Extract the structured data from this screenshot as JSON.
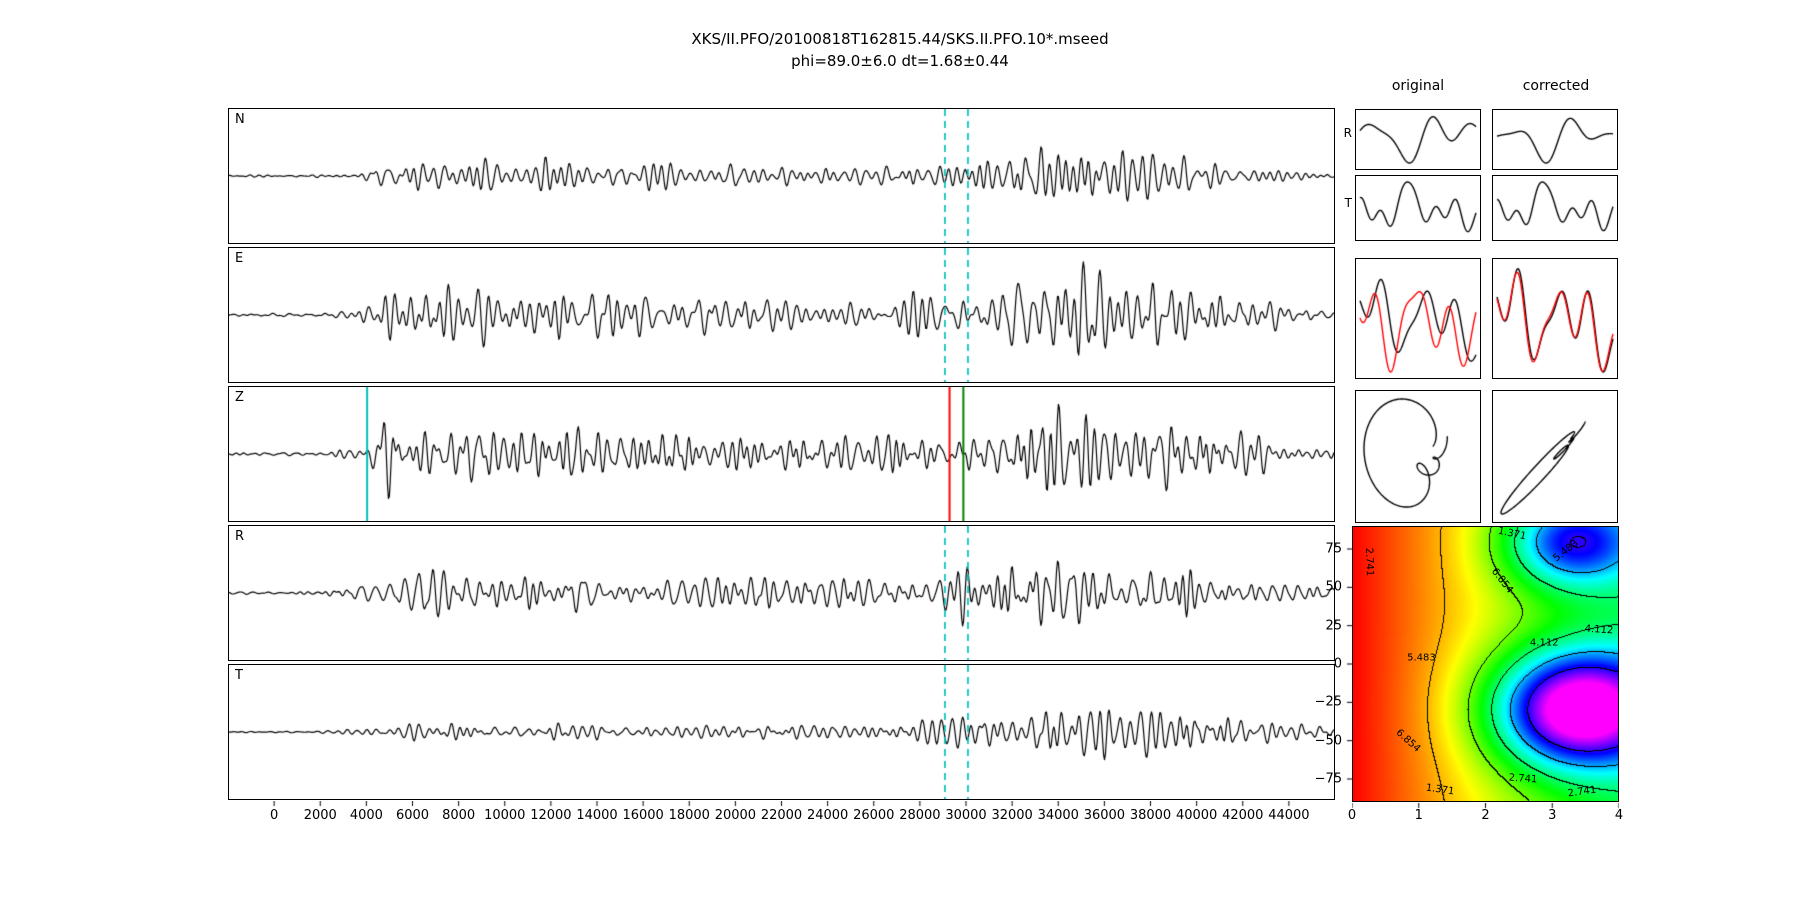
{
  "title": "XKS/II.PFO/20100818T162815.44/SKS.II.PFO.10*.mseed",
  "subtitle": "phi=89.0±6.0 dt=1.68±0.44",
  "colors": {
    "trace": "#000000",
    "window_dashed": "#00bfbf",
    "pick_cyan": "#00bfbf",
    "pick_red": "#ff0000",
    "pick_green": "#008000",
    "compare_red": "#ff0000"
  },
  "chart_data": {
    "type": "line",
    "main": {
      "type": "line",
      "xlim": [
        -2000,
        46000
      ],
      "xticks": [
        0,
        2000,
        4000,
        6000,
        8000,
        10000,
        12000,
        14000,
        16000,
        18000,
        20000,
        22000,
        24000,
        26000,
        28000,
        30000,
        32000,
        34000,
        36000,
        38000,
        40000,
        42000,
        44000
      ],
      "window": {
        "start": 29100,
        "end": 30100
      },
      "panels": [
        {
          "label": "N",
          "seed": 11,
          "amp": 0.7,
          "envelope": [
            [
              -2000,
              0.03
            ],
            [
              1500,
              0.04
            ],
            [
              3200,
              0.07
            ],
            [
              4600,
              0.32
            ],
            [
              6200,
              0.5
            ],
            [
              9000,
              0.42
            ],
            [
              14000,
              0.38
            ],
            [
              20000,
              0.34
            ],
            [
              26000,
              0.31
            ],
            [
              29200,
              0.36
            ],
            [
              31000,
              0.55
            ],
            [
              33500,
              0.95
            ],
            [
              36000,
              1.0
            ],
            [
              38500,
              0.75
            ],
            [
              41500,
              0.45
            ],
            [
              43500,
              0.22
            ],
            [
              46000,
              0.1
            ]
          ],
          "dashed": [
            29100,
            30100
          ],
          "solid": []
        },
        {
          "label": "E",
          "seed": 22,
          "amp": 0.85,
          "envelope": [
            [
              -2000,
              0.03
            ],
            [
              1500,
              0.05
            ],
            [
              3600,
              0.1
            ],
            [
              5200,
              0.6
            ],
            [
              7000,
              0.62
            ],
            [
              11000,
              0.52
            ],
            [
              17000,
              0.46
            ],
            [
              23000,
              0.42
            ],
            [
              28000,
              0.45
            ],
            [
              29800,
              0.75
            ],
            [
              32500,
              1.0
            ],
            [
              36500,
              0.9
            ],
            [
              39500,
              0.72
            ],
            [
              42500,
              0.42
            ],
            [
              46000,
              0.12
            ]
          ],
          "dashed": [
            29100,
            30100
          ],
          "solid": []
        },
        {
          "label": "Z",
          "seed": 33,
          "amp": 0.88,
          "envelope": [
            [
              -2000,
              0.03
            ],
            [
              2000,
              0.05
            ],
            [
              3900,
              0.12
            ],
            [
              4600,
              1.0
            ],
            [
              5400,
              0.95
            ],
            [
              7000,
              0.72
            ],
            [
              10000,
              0.65
            ],
            [
              15000,
              0.6
            ],
            [
              21000,
              0.55
            ],
            [
              27000,
              0.5
            ],
            [
              30000,
              0.55
            ],
            [
              32500,
              0.78
            ],
            [
              35000,
              0.88
            ],
            [
              38000,
              0.82
            ],
            [
              41000,
              0.6
            ],
            [
              43500,
              0.32
            ],
            [
              46000,
              0.12
            ]
          ],
          "dashed": [],
          "solid": [
            {
              "x": 4000,
              "color": "#00bfbf"
            },
            {
              "x": 29300,
              "color": "#ff0000"
            },
            {
              "x": 29900,
              "color": "#008000"
            }
          ]
        },
        {
          "label": "R",
          "seed": 44,
          "amp": 0.8,
          "envelope": [
            [
              -2000,
              0.03
            ],
            [
              2000,
              0.05
            ],
            [
              4200,
              0.32
            ],
            [
              6200,
              0.55
            ],
            [
              10000,
              0.46
            ],
            [
              16000,
              0.4
            ],
            [
              22000,
              0.36
            ],
            [
              28000,
              0.36
            ],
            [
              29800,
              0.6
            ],
            [
              31800,
              1.0
            ],
            [
              34500,
              0.85
            ],
            [
              37500,
              0.78
            ],
            [
              40500,
              0.6
            ],
            [
              43000,
              0.35
            ],
            [
              46000,
              0.12
            ]
          ],
          "dashed": [
            29100,
            30100
          ],
          "solid": []
        },
        {
          "label": "T",
          "seed": 55,
          "amp": 0.6,
          "envelope": [
            [
              -2000,
              0.02
            ],
            [
              2500,
              0.04
            ],
            [
              4500,
              0.22
            ],
            [
              6500,
              0.35
            ],
            [
              10000,
              0.3
            ],
            [
              16000,
              0.28
            ],
            [
              22000,
              0.27
            ],
            [
              28000,
              0.29
            ],
            [
              30200,
              0.45
            ],
            [
              32500,
              0.72
            ],
            [
              35000,
              0.9
            ],
            [
              37200,
              1.0
            ],
            [
              39800,
              0.78
            ],
            [
              42000,
              0.5
            ],
            [
              44000,
              0.26
            ],
            [
              46000,
              0.1
            ]
          ],
          "dashed": [
            29100,
            30100
          ],
          "solid": []
        }
      ]
    },
    "mini": {
      "col_headers": [
        "original",
        "corrected"
      ],
      "row_labels": [
        "R",
        "T"
      ],
      "panels": [
        {
          "curves": [
            {
              "color": "#000000",
              "h": [
                [
                  1.1,
                  0.55,
                  2.0
                ],
                [
                  2.3,
                  0.5,
                  5.3
                ],
                [
                  3.4,
                  0.25,
                  1.0
                ],
                [
                  0.5,
                  0.2,
                  0.3
                ]
              ]
            }
          ]
        },
        {
          "curves": [
            {
              "color": "#000000",
              "h": [
                [
                  1.1,
                  0.5,
                  2.2
                ],
                [
                  2.3,
                  0.55,
                  5.0
                ],
                [
                  3.4,
                  0.2,
                  1.4
                ],
                [
                  0.5,
                  0.15,
                  0.5
                ]
              ]
            }
          ]
        },
        {
          "curves": [
            {
              "color": "#000000",
              "h": [
                [
                  2.8,
                  0.3,
                  0.6
                ],
                [
                  4.6,
                  0.18,
                  2.2
                ],
                [
                  1.4,
                  0.22,
                  4.0
                ],
                [
                  6.2,
                  0.1,
                  1.0
                ]
              ]
            }
          ]
        },
        {
          "curves": [
            {
              "color": "#000000",
              "h": [
                [
                  2.8,
                  0.2,
                  0.8
                ],
                [
                  4.6,
                  0.11,
                  2.5
                ],
                [
                  1.4,
                  0.16,
                  4.2
                ],
                [
                  6.2,
                  0.07,
                  1.2
                ]
              ]
            }
          ]
        },
        {
          "curves": [
            {
              "color": "#000000",
              "h": [
                [
                  1.6,
                  0.5,
                  1.2
                ],
                [
                  3.1,
                  0.45,
                  4.0
                ],
                [
                  4.8,
                  0.25,
                  2.2
                ],
                [
                  0.8,
                  0.2,
                  0.5
                ]
              ]
            },
            {
              "color": "#ff0000",
              "h": [
                [
                  1.6,
                  0.6,
                  2.5
                ],
                [
                  3.1,
                  0.55,
                  5.3
                ],
                [
                  4.8,
                  0.3,
                  3.5
                ],
                [
                  0.8,
                  0.22,
                  1.8
                ]
              ]
            }
          ]
        },
        {
          "curves": [
            {
              "color": "#000000",
              "h": [
                [
                  1.7,
                  0.5,
                  1.0
                ],
                [
                  3.3,
                  0.5,
                  3.8
                ],
                [
                  5.0,
                  0.3,
                  2.0
                ],
                [
                  0.9,
                  0.2,
                  0.4
                ]
              ]
            },
            {
              "color": "#ff0000",
              "h": [
                [
                  1.7,
                  0.5,
                  1.15
                ],
                [
                  3.3,
                  0.5,
                  3.95
                ],
                [
                  5.0,
                  0.28,
                  2.15
                ],
                [
                  0.9,
                  0.18,
                  0.55
                ]
              ]
            }
          ]
        },
        {
          "pm": {
            "hx": [
              [
                1,
                0.55,
                0.3
              ],
              [
                2.1,
                0.35,
                1.2
              ],
              [
                3.2,
                0.28,
                2.6
              ]
            ],
            "hy": [
              [
                1,
                0.5,
                1.9
              ],
              [
                2.1,
                0.38,
                2.9
              ],
              [
                3.2,
                0.25,
                4.3
              ]
            ]
          }
        },
        {
          "pm": {
            "hx": [
              [
                1,
                0.55,
                0.3
              ],
              [
                2.1,
                0.4,
                1.2
              ],
              [
                3.2,
                0.3,
                2.6
              ]
            ],
            "hy": [
              [
                1,
                0.52,
                0.5
              ],
              [
                2.1,
                0.38,
                1.45
              ],
              [
                3.2,
                0.28,
                2.85
              ]
            ]
          }
        }
      ]
    },
    "map": {
      "type": "heatmap",
      "xlim": [
        0,
        4
      ],
      "ylim": [
        -90,
        90
      ],
      "xticks": [
        0,
        1,
        2,
        3,
        4
      ],
      "yticks": [
        75,
        50,
        25,
        0,
        -25,
        -50,
        -75
      ],
      "levels": [
        1.371,
        2.741,
        4.112,
        5.483,
        6.854
      ],
      "vmax": 8,
      "base": [
        8,
        -0.8
      ],
      "wells": [
        {
          "cx": 3.4,
          "cy": -30,
          "sx": 1.25,
          "sy": 38,
          "a": 6.5
        },
        {
          "cx": 3.3,
          "cy": 80,
          "sx": 1.0,
          "sy": 30,
          "a": 4.0
        }
      ],
      "labels": [
        {
          "t": "1.371",
          "x": 0.6,
          "y": 0.03,
          "r": 12
        },
        {
          "t": "5.483",
          "x": 0.8,
          "y": 0.09,
          "r": -38
        },
        {
          "t": "2.741",
          "x": 0.065,
          "y": 0.13,
          "r": 88
        },
        {
          "t": "6.854",
          "x": 0.56,
          "y": 0.2,
          "r": 52
        },
        {
          "t": "4.112",
          "x": 0.925,
          "y": 0.375,
          "r": 4
        },
        {
          "t": "4.112",
          "x": 0.72,
          "y": 0.425,
          "r": 0
        },
        {
          "t": "5.483",
          "x": 0.26,
          "y": 0.48,
          "r": 0
        },
        {
          "t": "6.854",
          "x": 0.21,
          "y": 0.78,
          "r": 42
        },
        {
          "t": "2.741",
          "x": 0.64,
          "y": 0.915,
          "r": 4
        },
        {
          "t": "1.371",
          "x": 0.33,
          "y": 0.955,
          "r": 8
        },
        {
          "t": "2.741",
          "x": 0.86,
          "y": 0.965,
          "r": -8
        }
      ],
      "best": {
        "phi": 89.0,
        "dt": 1.68
      }
    }
  }
}
